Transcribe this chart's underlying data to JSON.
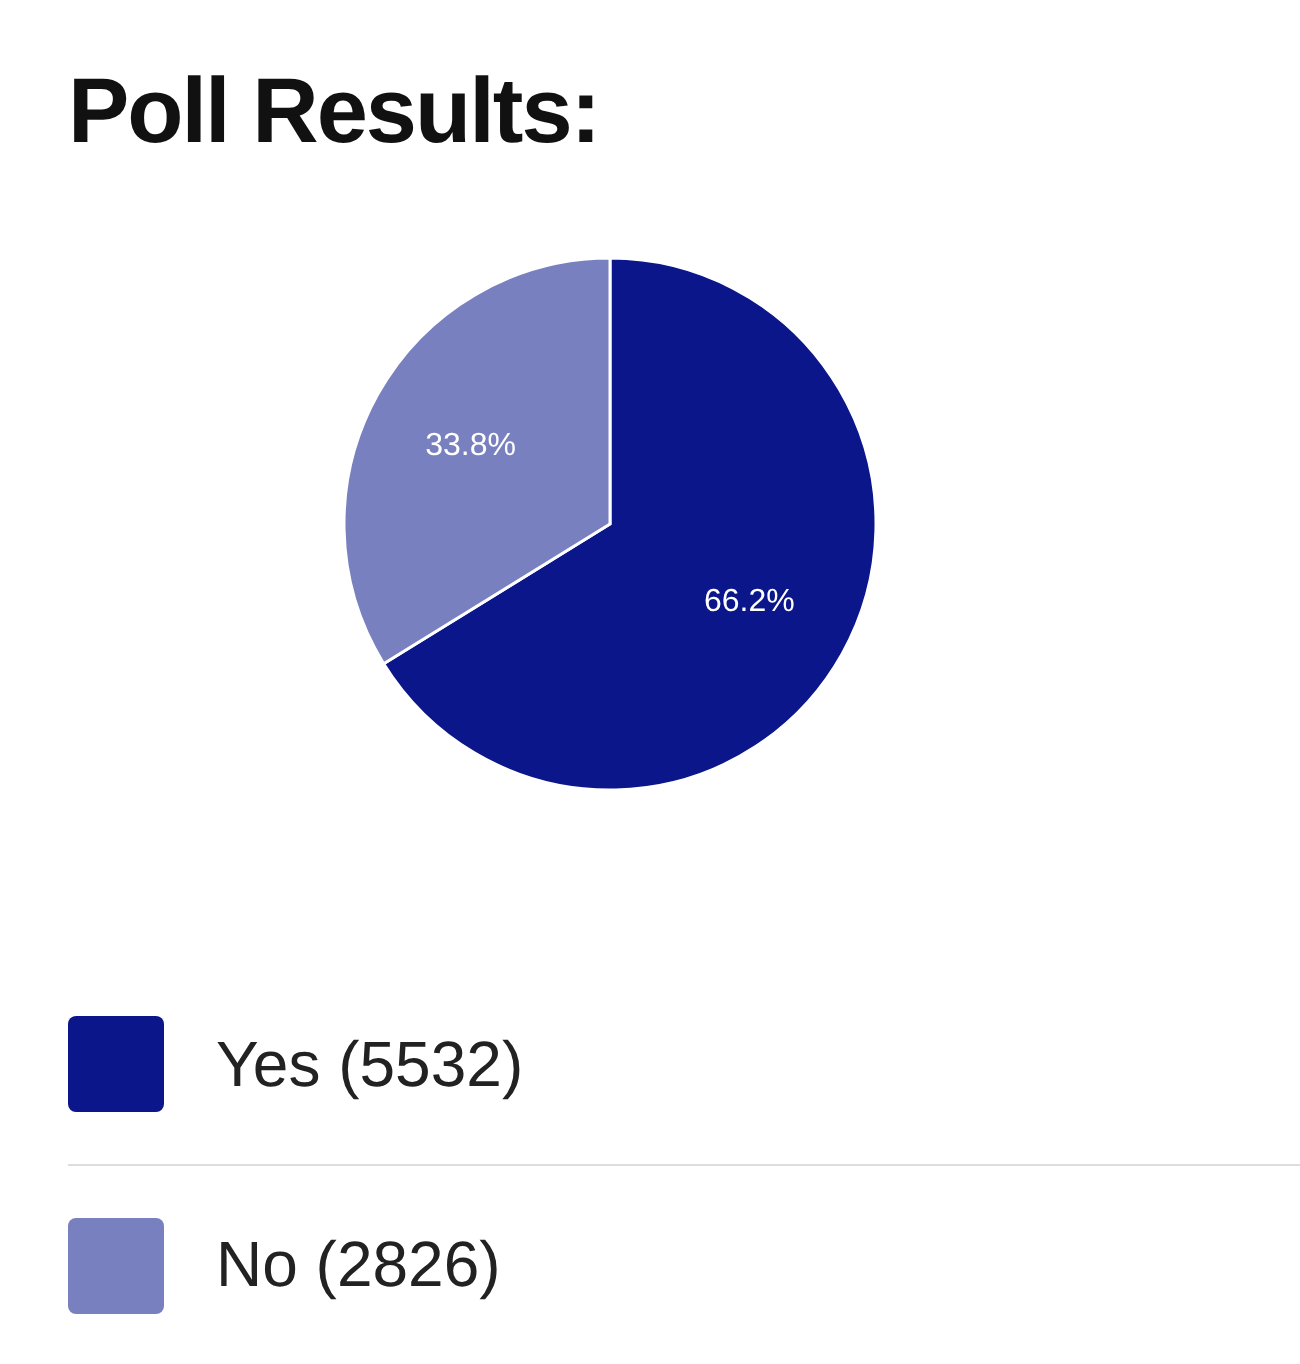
{
  "chart_data": {
    "type": "pie",
    "title": "Poll Results:",
    "categories": [
      "Yes (5532)",
      "No (2826)"
    ],
    "values": [
      66.2,
      33.8
    ],
    "colors": [
      "#0a168a",
      "#7880c0"
    ],
    "value_labels": [
      "66.2%",
      "33.8%"
    ],
    "legend": "bottom"
  }
}
